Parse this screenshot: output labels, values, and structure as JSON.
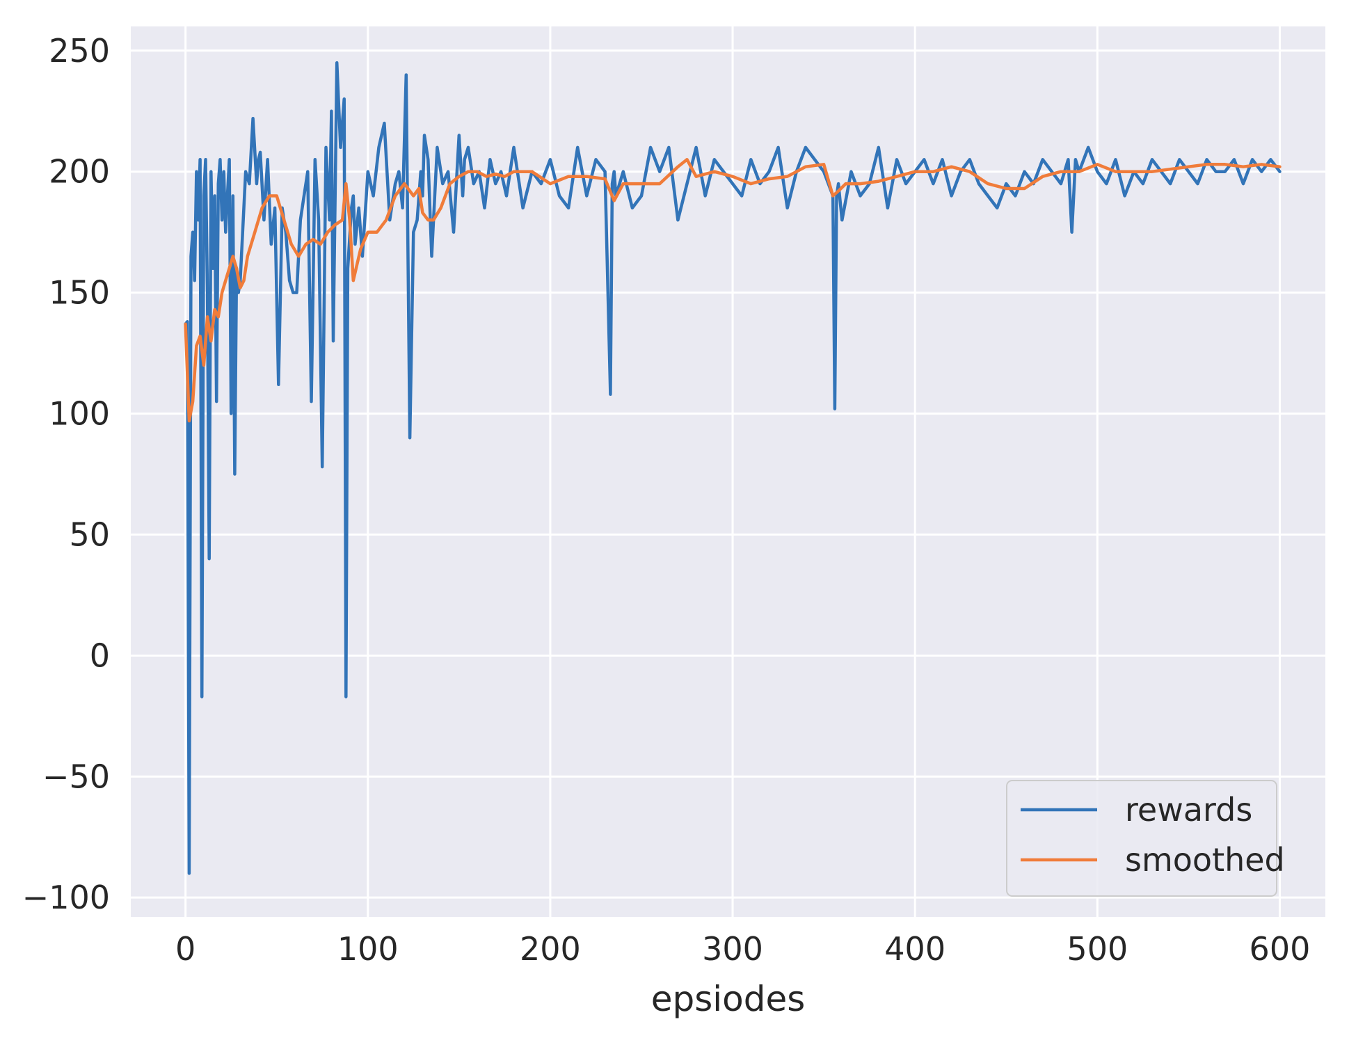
{
  "chart_data": {
    "type": "line",
    "title": "",
    "xlabel": "epsiodes",
    "ylabel": "",
    "xlim": [
      -30,
      625
    ],
    "ylim": [
      -108,
      260
    ],
    "xticks": [
      0,
      100,
      200,
      300,
      400,
      500,
      600
    ],
    "yticks": [
      -100,
      -50,
      0,
      50,
      100,
      150,
      200,
      250
    ],
    "xtick_labels": [
      "0",
      "100",
      "200",
      "300",
      "400",
      "500",
      "600"
    ],
    "ytick_labels": [
      "−100",
      "−50",
      "0",
      "50",
      "100",
      "150",
      "200",
      "250"
    ],
    "grid": true,
    "legend_position": "lower-right",
    "colors": {
      "background": "#eaeaf2",
      "grid": "#ffffff",
      "rewards": "#3274b8",
      "smoothed": "#f07c3a"
    },
    "series": [
      {
        "name": "rewards",
        "x": [
          0,
          1,
          2,
          3,
          4,
          5,
          6,
          7,
          8,
          9,
          10,
          11,
          12,
          13,
          14,
          15,
          16,
          17,
          18,
          19,
          20,
          21,
          22,
          23,
          24,
          25,
          26,
          27,
          28,
          29,
          30,
          31,
          33,
          35,
          37,
          39,
          40,
          41,
          43,
          45,
          47,
          49,
          51,
          53,
          55,
          57,
          59,
          61,
          63,
          65,
          67,
          69,
          71,
          73,
          75,
          77,
          79,
          80,
          81,
          83,
          85,
          87,
          88,
          89,
          91,
          92,
          93,
          95,
          97,
          100,
          103,
          106,
          109,
          112,
          115,
          117,
          119,
          121,
          123,
          125,
          127,
          129,
          130,
          131,
          133,
          135,
          138,
          141,
          144,
          147,
          150,
          152,
          153,
          155,
          158,
          161,
          164,
          167,
          170,
          173,
          176,
          180,
          185,
          190,
          195,
          200,
          205,
          210,
          215,
          220,
          225,
          230,
          233,
          234,
          235,
          236,
          240,
          245,
          250,
          255,
          260,
          265,
          270,
          275,
          280,
          285,
          290,
          295,
          300,
          305,
          310,
          315,
          320,
          325,
          330,
          335,
          340,
          345,
          350,
          355,
          356,
          357,
          358,
          360,
          365,
          370,
          375,
          380,
          385,
          390,
          395,
          400,
          405,
          410,
          415,
          420,
          425,
          430,
          435,
          440,
          445,
          450,
          455,
          460,
          465,
          470,
          475,
          480,
          484,
          486,
          488,
          490,
          495,
          500,
          505,
          510,
          515,
          520,
          525,
          530,
          535,
          540,
          545,
          550,
          555,
          560,
          565,
          570,
          575,
          580,
          585,
          590,
          595,
          600
        ],
        "values": [
          137,
          138,
          -90,
          165,
          175,
          155,
          200,
          180,
          205,
          -17,
          190,
          205,
          150,
          40,
          200,
          160,
          190,
          105,
          195,
          205,
          180,
          200,
          175,
          190,
          205,
          100,
          190,
          75,
          160,
          150,
          155,
          170,
          200,
          195,
          222,
          195,
          205,
          208,
          180,
          205,
          170,
          185,
          112,
          185,
          175,
          155,
          150,
          150,
          180,
          190,
          200,
          105,
          205,
          180,
          78,
          210,
          180,
          225,
          130,
          245,
          210,
          230,
          -17,
          160,
          185,
          190,
          170,
          185,
          165,
          200,
          190,
          210,
          220,
          180,
          195,
          200,
          185,
          240,
          90,
          175,
          180,
          200,
          190,
          215,
          205,
          165,
          210,
          195,
          200,
          175,
          215,
          190,
          205,
          210,
          195,
          200,
          185,
          205,
          195,
          200,
          190,
          210,
          185,
          200,
          195,
          205,
          190,
          185,
          210,
          190,
          205,
          200,
          108,
          195,
          200,
          190,
          200,
          185,
          190,
          210,
          200,
          210,
          180,
          195,
          210,
          190,
          205,
          200,
          195,
          190,
          205,
          195,
          200,
          210,
          185,
          200,
          210,
          205,
          200,
          190,
          102,
          190,
          195,
          180,
          200,
          190,
          195,
          210,
          185,
          205,
          195,
          200,
          205,
          195,
          205,
          190,
          200,
          205,
          195,
          190,
          185,
          195,
          190,
          200,
          195,
          205,
          200,
          195,
          205,
          175,
          205,
          200,
          210,
          200,
          195,
          205,
          190,
          200,
          195,
          205,
          200,
          195,
          205,
          200,
          195,
          205,
          200,
          200,
          205,
          195,
          205,
          200,
          205,
          200
        ]
      },
      {
        "name": "smoothed",
        "x": [
          0,
          2,
          4,
          6,
          8,
          10,
          12,
          14,
          16,
          18,
          20,
          22,
          24,
          26,
          28,
          30,
          32,
          34,
          38,
          42,
          46,
          50,
          54,
          58,
          62,
          66,
          70,
          74,
          78,
          82,
          86,
          88,
          90,
          92,
          96,
          100,
          105,
          110,
          115,
          120,
          125,
          128,
          130,
          133,
          136,
          140,
          145,
          150,
          155,
          160,
          165,
          170,
          175,
          180,
          190,
          200,
          210,
          220,
          230,
          235,
          240,
          250,
          260,
          270,
          275,
          280,
          290,
          300,
          310,
          320,
          330,
          340,
          350,
          355,
          358,
          362,
          370,
          380,
          390,
          400,
          410,
          420,
          430,
          440,
          450,
          460,
          470,
          480,
          490,
          500,
          510,
          520,
          530,
          540,
          550,
          560,
          570,
          580,
          590,
          600
        ],
        "values": [
          137,
          97,
          105,
          128,
          132,
          120,
          140,
          130,
          143,
          140,
          150,
          155,
          160,
          165,
          160,
          152,
          155,
          165,
          175,
          185,
          190,
          190,
          180,
          170,
          165,
          170,
          172,
          170,
          175,
          178,
          180,
          195,
          180,
          155,
          168,
          175,
          175,
          180,
          190,
          195,
          190,
          193,
          183,
          180,
          180,
          185,
          195,
          198,
          200,
          200,
          198,
          199,
          198,
          200,
          200,
          195,
          198,
          198,
          197,
          188,
          195,
          195,
          195,
          202,
          205,
          198,
          200,
          198,
          195,
          197,
          198,
          202,
          203,
          190,
          192,
          195,
          195,
          196,
          198,
          200,
          200,
          202,
          200,
          195,
          193,
          193,
          198,
          200,
          200,
          203,
          200,
          200,
          200,
          201,
          202,
          203,
          203,
          202,
          203,
          202
        ]
      }
    ]
  }
}
